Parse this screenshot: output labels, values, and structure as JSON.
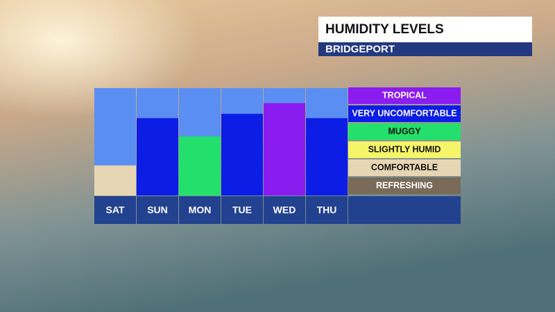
{
  "chart_data": {
    "type": "bar",
    "title": "HUMIDITY LEVELS",
    "subtitle": "BRIDGEPORT",
    "categories": [
      "SAT",
      "SUN",
      "MON",
      "TUE",
      "WED",
      "THU"
    ],
    "values": [
      28,
      72,
      55,
      76,
      86,
      72
    ],
    "colors": [
      "#e6d6b4",
      "#0c1de6",
      "#23e06c",
      "#0c1de6",
      "#8b1cf0",
      "#0c1de6"
    ],
    "ylim": [
      0,
      100
    ],
    "levels": [
      {
        "name": "TROPICAL",
        "color": "#8b1cf0"
      },
      {
        "name": "VERY UNCOMFORTABLE",
        "color": "#0c1de6"
      },
      {
        "name": "MUGGY",
        "color": "#23e06c"
      },
      {
        "name": "SLIGHTLY HUMID",
        "color": "#f6f56a"
      },
      {
        "name": "COMFORTABLE",
        "color": "#e6d6b4"
      },
      {
        "name": "REFRESHING",
        "color": "#7a6a58"
      }
    ]
  }
}
